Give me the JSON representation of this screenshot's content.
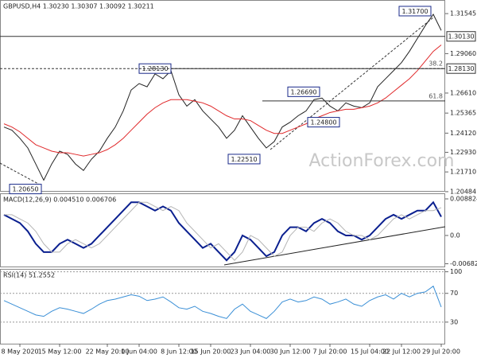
{
  "chart_data": [
    {
      "type": "line",
      "title": "GBPUSD,H4  1.30230 1.30307 1.30092 1.30211",
      "ylim": [
        1.2053,
        1.3239
      ],
      "yticks": [
        1.31545,
        {
          "value": 1.2906,
          "label": "1.29060"
        },
        {
          "value": 1.2661,
          "label": "1.26610"
        },
        1.25365,
        {
          "value": 1.2412,
          "label": "1.24120"
        },
        {
          "value": 1.2293,
          "label": "1.22930"
        },
        {
          "value": 1.2171,
          "label": "1.21710"
        },
        1.20484
      ],
      "series": [
        {
          "name": "Price",
          "color": "#222222",
          "values": [
            1.245,
            1.243,
            1.238,
            1.232,
            1.222,
            1.212,
            1.222,
            1.23,
            1.228,
            1.222,
            1.218,
            1.225,
            1.23,
            1.238,
            1.245,
            1.255,
            1.268,
            1.272,
            1.27,
            1.278,
            1.275,
            1.28,
            1.265,
            1.258,
            1.262,
            1.255,
            1.25,
            1.245,
            1.238,
            1.243,
            1.252,
            1.245,
            1.238,
            1.232,
            1.236,
            1.245,
            1.248,
            1.252,
            1.255,
            1.262,
            1.263,
            1.258,
            1.255,
            1.26,
            1.258,
            1.257,
            1.26,
            1.27,
            1.275,
            1.28,
            1.285,
            1.292,
            1.3,
            1.308,
            1.315,
            1.305
          ]
        },
        {
          "name": "SMA",
          "color": "#e0292b",
          "values": [
            1.247,
            1.245,
            1.242,
            1.238,
            1.234,
            1.232,
            1.23,
            1.229,
            1.229,
            1.228,
            1.227,
            1.228,
            1.229,
            1.231,
            1.234,
            1.238,
            1.243,
            1.248,
            1.253,
            1.257,
            1.26,
            1.262,
            1.262,
            1.262,
            1.261,
            1.26,
            1.258,
            1.255,
            1.252,
            1.25,
            1.25,
            1.249,
            1.246,
            1.243,
            1.241,
            1.241,
            1.243,
            1.245,
            1.247,
            1.25,
            1.252,
            1.254,
            1.255,
            1.256,
            1.256,
            1.257,
            1.258,
            1.26,
            1.263,
            1.267,
            1.271,
            1.275,
            1.28,
            1.286,
            1.292,
            1.296
          ]
        }
      ],
      "annotations": [
        {
          "value": 1.317,
          "label": "1.31700"
        },
        {
          "value": 1.2813,
          "label": "1.28130"
        },
        {
          "value": 1.2669,
          "label": "1.26690"
        },
        {
          "value": 1.248,
          "label": "1.24800"
        },
        {
          "value": 1.2251,
          "label": "1.22510"
        },
        {
          "value": 1.2065,
          "label": "1.20650"
        }
      ],
      "levels": [
        {
          "value": 1.2813,
          "label": "38.2"
        },
        {
          "value": 1.2612,
          "label": "61.8"
        }
      ],
      "price_markers": [
        {
          "value": 1.3013,
          "label": "1.30130"
        },
        {
          "value": 1.2813,
          "label": "1.28130"
        }
      ],
      "watermark": "ActionForex.com"
    },
    {
      "type": "line",
      "title": "MACD(12,26,9) 0.004510 0.006706",
      "ylim": [
        -0.00768,
        0.01017
      ],
      "yticks": [
        0.008824,
        {
          "value": 0,
          "label": "0.0"
        },
        -0.006825
      ],
      "series": [
        {
          "name": "MACD",
          "color": "#0a1f8f",
          "values": [
            0.005,
            0.004,
            0.003,
            0.001,
            -0.002,
            -0.004,
            -0.004,
            -0.002,
            -0.001,
            -0.002,
            -0.003,
            -0.002,
            0.0,
            0.002,
            0.004,
            0.006,
            0.008,
            0.008,
            0.007,
            0.006,
            0.007,
            0.006,
            0.003,
            0.001,
            -0.001,
            -0.003,
            -0.002,
            -0.004,
            -0.006,
            -0.004,
            0.0,
            -0.001,
            -0.003,
            -0.005,
            -0.004,
            0.0,
            0.002,
            0.002,
            0.001,
            0.003,
            0.004,
            0.003,
            0.001,
            0.0,
            0.0,
            -0.001,
            0.0,
            0.002,
            0.004,
            0.005,
            0.004,
            0.005,
            0.006,
            0.006,
            0.008,
            0.0045
          ]
        },
        {
          "name": "Signal",
          "color": "#b5b5b5",
          "values": [
            0.005,
            0.005,
            0.004,
            0.003,
            0.001,
            -0.002,
            -0.004,
            -0.004,
            -0.002,
            -0.001,
            -0.002,
            -0.003,
            -0.002,
            0.0,
            0.002,
            0.004,
            0.006,
            0.008,
            0.008,
            0.007,
            0.006,
            0.007,
            0.006,
            0.003,
            0.001,
            -0.001,
            -0.003,
            -0.002,
            -0.004,
            -0.006,
            -0.004,
            0.0,
            -0.001,
            -0.003,
            -0.005,
            -0.004,
            0.0,
            0.002,
            0.002,
            0.001,
            0.003,
            0.004,
            0.003,
            0.001,
            0.0,
            0.0,
            -0.001,
            0.0,
            0.002,
            0.004,
            0.005,
            0.004,
            0.005,
            0.006,
            0.006,
            0.0067
          ]
        }
      ]
    },
    {
      "type": "line",
      "title": "RSI(14) 51.2552",
      "ylim": [
        0,
        104
      ],
      "yticks": [
        100,
        70,
        30
      ],
      "categories": [
        null,
        null,
        "8 May 2020",
        null,
        null,
        null,
        null,
        "15 May 12:00",
        null,
        null,
        null,
        null,
        null,
        "22 May 20:00",
        null,
        null,
        null,
        "1 Jun 04:00",
        null,
        null,
        null,
        null,
        "8 Jun 12:00",
        null,
        null,
        null,
        "15 Jun 20:00",
        null,
        null,
        null,
        null,
        "23 Jun 04:00",
        null,
        null,
        null,
        null,
        "30 Jun 12:00",
        null,
        null,
        null,
        null,
        "7 Jul 20:00",
        null,
        null,
        null,
        null,
        "15 Jul 04:00",
        null,
        null,
        null,
        "22 Jul 12:00",
        null,
        null,
        null,
        null,
        "29 Jul 20:00"
      ],
      "series": [
        {
          "name": "RSI",
          "color": "#3a8fd6",
          "values": [
            60,
            55,
            50,
            45,
            40,
            38,
            45,
            50,
            48,
            45,
            42,
            48,
            55,
            60,
            62,
            65,
            68,
            66,
            60,
            62,
            65,
            58,
            50,
            48,
            52,
            45,
            42,
            38,
            35,
            48,
            55,
            45,
            40,
            35,
            45,
            58,
            62,
            58,
            60,
            65,
            62,
            55,
            58,
            62,
            55,
            52,
            60,
            65,
            68,
            62,
            70,
            65,
            70,
            72,
            80,
            51
          ]
        }
      ]
    }
  ]
}
